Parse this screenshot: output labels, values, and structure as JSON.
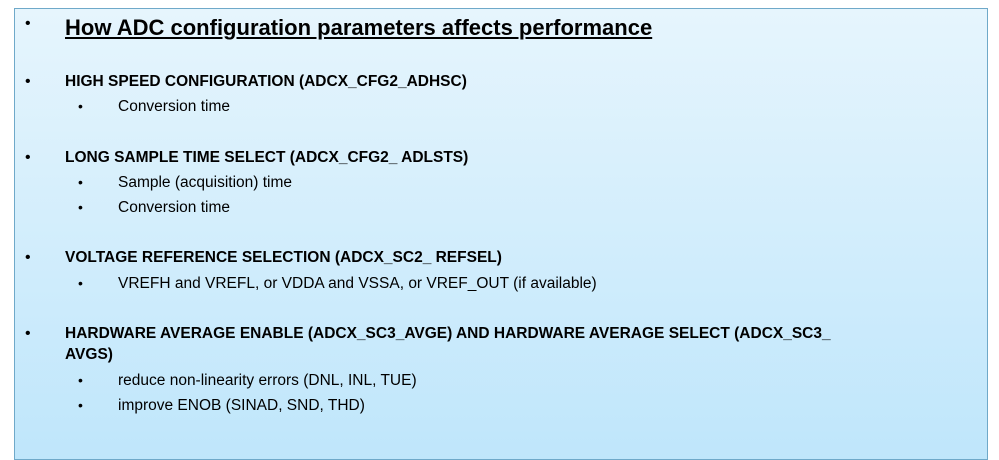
{
  "title": "How ADC configuration parameters affects performance",
  "bullet": "•",
  "sections": [
    {
      "heading": "HIGH SPEED CONFIGURATION (ADCX_CFG2_ADHSC)",
      "items": [
        "Conversion time"
      ]
    },
    {
      "heading": "LONG SAMPLE TIME SELECT (ADCX_CFG2_ ADLSTS)",
      "items": [
        "Sample (acquisition) time",
        "Conversion time"
      ]
    },
    {
      "heading": "VOLTAGE REFERENCE SELECTION (ADCX_SC2_ REFSEL)",
      "items": [
        "VREFH and VREFL, or VDDA and VSSA, or VREF_OUT (if available)"
      ]
    },
    {
      "heading": "HARDWARE AVERAGE ENABLE (ADCX_SC3_AVGE) AND HARDWARE AVERAGE SELECT (ADCX_SC3_",
      "heading_cont": "AVGS)",
      "items": [
        "reduce non-linearity errors (DNL, INL, TUE)",
        "improve ENOB (SINAD, SND, THD)"
      ]
    }
  ]
}
